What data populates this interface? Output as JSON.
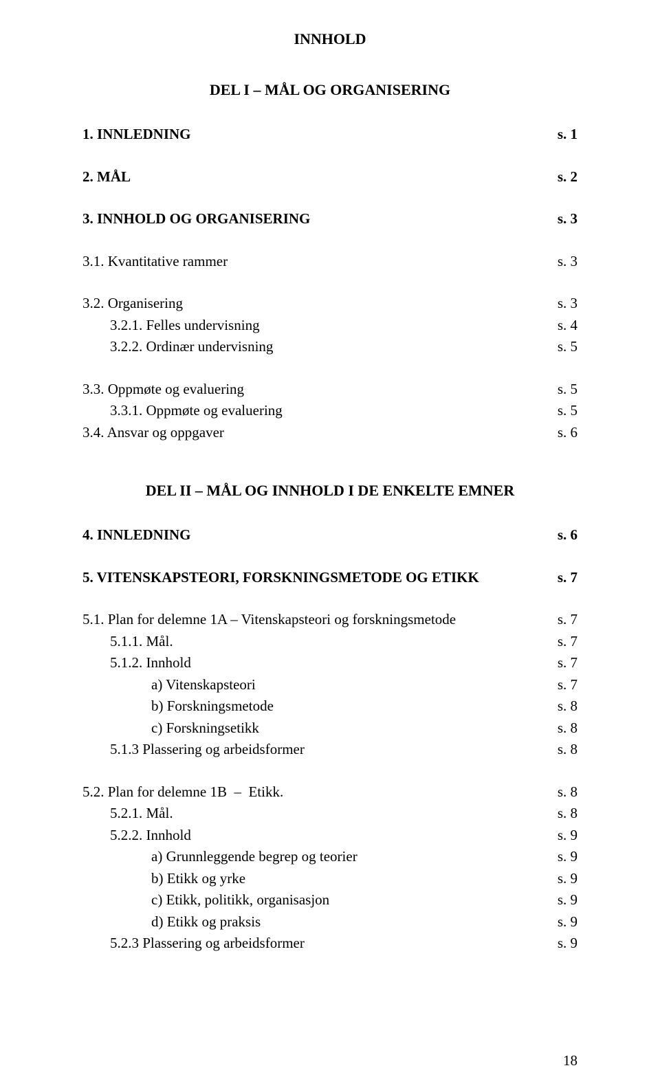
{
  "page": {
    "title": "INNHOLD",
    "part1_heading": "DEL I – MÅL OG ORGANISERING",
    "part2_heading": "DEL II – MÅL OG INNHOLD I DE ENKELTE EMNER",
    "page_number": "18",
    "fonts": {
      "family": "Times New Roman",
      "title_size_pt": 22,
      "body_size_pt": 21
    },
    "colors": {
      "text": "#000000",
      "background": "#ffffff"
    }
  },
  "toc": {
    "sec1": {
      "label": "1. INNLEDNING",
      "page": "s.  1"
    },
    "sec2": {
      "label": "2. MÅL",
      "page": "s.  2"
    },
    "sec3": {
      "label": "3. INNHOLD OG ORGANISERING",
      "page": "s.  3"
    },
    "sec31": {
      "label": "3.1. Kvantitative rammer",
      "page": "s.  3"
    },
    "sec32": {
      "label": "3.2. Organisering",
      "page": "s.  3"
    },
    "sec321": {
      "label": "3.2.1. Felles undervisning",
      "page": "s.  4"
    },
    "sec322": {
      "label": "3.2.2. Ordinær undervisning",
      "page": "s.  5"
    },
    "sec33": {
      "label": "3.3. Oppmøte og evaluering",
      "page": "s.  5"
    },
    "sec331": {
      "label": "3.3.1. Oppmøte og evaluering",
      "page": "s.  5"
    },
    "sec34": {
      "label": "3.4. Ansvar og oppgaver",
      "page": "s.  6"
    },
    "sec4": {
      "label": "4. INNLEDNING",
      "page": "s.  6"
    },
    "sec5": {
      "label": "5. VITENSKAPSTEORI, FORSKNINGSMETODE OG ETIKK",
      "page": "s.  7"
    },
    "sec51": {
      "label": "5.1. Plan for delemne 1A – Vitenskapsteori og forskningsmetode",
      "page": "s.  7"
    },
    "sec511": {
      "label": "5.1.1. Mål.",
      "page": "s.  7"
    },
    "sec512": {
      "label": "5.1.2. Innhold",
      "page": "s.  7"
    },
    "sec512a": {
      "label": "a) Vitenskapsteori",
      "page": "s.  7"
    },
    "sec512b": {
      "label": "b) Forskningsmetode",
      "page": "s.  8"
    },
    "sec512c": {
      "label": "c) Forskningsetikk",
      "page": "s.  8"
    },
    "sec513": {
      "label": "5.1.3 Plassering og arbeidsformer",
      "page": "s.  8"
    },
    "sec52": {
      "label": "5.2. Plan for delemne 1B  –  Etikk.",
      "page": "s.  8"
    },
    "sec521": {
      "label": "5.2.1. Mål.",
      "page": "s.  8"
    },
    "sec522": {
      "label": "5.2.2. Innhold",
      "page": "s.  9"
    },
    "sec522a": {
      "label": "a) Grunnleggende begrep og teorier",
      "page": "s.  9"
    },
    "sec522b": {
      "label": "b) Etikk og yrke",
      "page": "s.  9"
    },
    "sec522c": {
      "label": "c) Etikk, politikk, organisasjon",
      "page": "s.  9"
    },
    "sec522d": {
      "label": "d) Etikk og praksis",
      "page": "s.  9"
    },
    "sec523": {
      "label": "5.2.3 Plassering og arbeidsformer",
      "page": "s.  9"
    }
  }
}
